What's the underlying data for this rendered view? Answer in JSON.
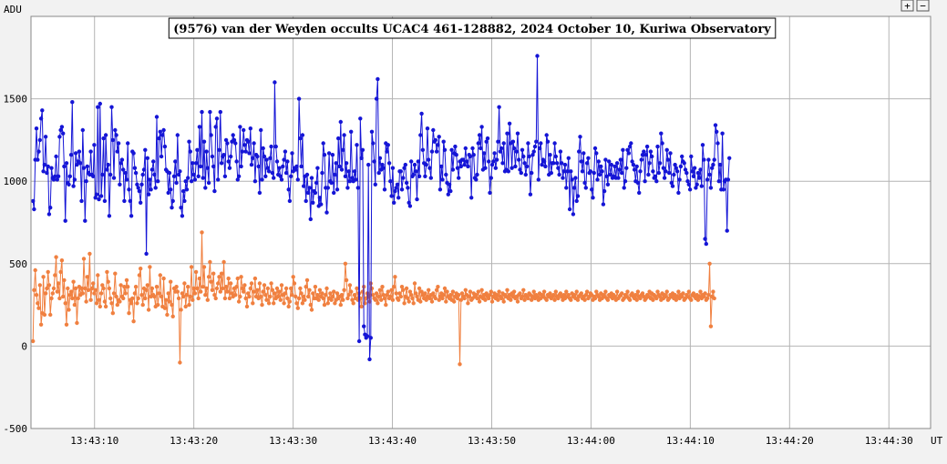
{
  "chart_data": {
    "type": "line",
    "title": "(9576) van der Weyden occults UCAC4 461-128882, 2024 October 10, Kuriwa Observatory",
    "ylabel": "ADU",
    "xlabel": "UT",
    "ylim": [
      -500,
      2000
    ],
    "y_ticks": [
      -500,
      0,
      500,
      1000,
      1500
    ],
    "x_ticks": [
      "13:43:10",
      "13:43:20",
      "13:43:30",
      "13:43:40",
      "13:43:50",
      "13:44:00",
      "13:44:10",
      "13:44:20",
      "13:44:30"
    ],
    "x_tick_seconds": [
      10,
      20,
      30,
      40,
      50,
      60,
      70,
      80,
      90
    ],
    "x_range_seconds": [
      3.6,
      94.2
    ],
    "grid": true,
    "sample_interval_seconds": 0.1165,
    "series": [
      {
        "color": "#1515d6",
        "start_seconds": 3.8,
        "values": [
          880,
          830,
          1130,
          1320,
          1130,
          1180,
          1250,
          1380,
          1430,
          1060,
          1100,
          1270,
          1050,
          1090,
          800,
          840,
          1080,
          1020,
          1010,
          1030,
          1150,
          1010,
          1030,
          1270,
          1310,
          1330,
          1290,
          1090,
          760,
          1110,
          990,
          980,
          1030,
          1160,
          1480,
          970,
          1010,
          1170,
          1100,
          1120,
          1180,
          1110,
          880,
          1310,
          1080,
          760,
          1000,
          1090,
          1050,
          1040,
          1180,
          1040,
          1030,
          1220,
          900,
          920,
          1450,
          890,
          1470,
          910,
          1040,
          1260,
          880,
          1280,
          1070,
          1100,
          790,
          1040,
          1450,
          1250,
          1020,
          1310,
          1280,
          1180,
          1230,
          980,
          1110,
          1130,
          1070,
          880,
          1050,
          1010,
          1230,
          950,
          880,
          790,
          1180,
          1170,
          1080,
          1050,
          980,
          960,
          940,
          870,
          980,
          1040,
          1070,
          1190,
          560,
          1140,
          920,
          1010,
          950,
          1070,
          1120,
          1040,
          960,
          1390,
          1000,
          1260,
          1300,
          1150,
          1280,
          1310,
          1210,
          1070,
          1060,
          930,
          1050,
          950,
          840,
          880,
          1030,
          1120,
          990,
          1280,
          1040,
          1060,
          840,
          790,
          940,
          880,
          1000,
          950,
          1020,
          1240,
          1180,
          1000,
          1110,
          1040,
          1010,
          1110,
          1190,
          1030,
          1330,
          1090,
          1420,
          1020,
          1240,
          960,
          1180,
          1080,
          990,
          1420,
          1280,
          1150,
          1090,
          940,
          1330,
          1380,
          1010,
          1190,
          1420,
          1110,
          1150,
          1160,
          1030,
          1250,
          1230,
          1120,
          1080,
          1150,
          1240,
          1280,
          1250,
          1230,
          1120,
          1010,
          1030,
          1330,
          1090,
          1180,
          1310,
          1220,
          1180,
          1250,
          1240,
          1170,
          1320,
          1100,
          1140,
          1230,
          1000,
          1160,
          1150,
          1090,
          930,
          1310,
          1010,
          1200,
          1150,
          1030,
          1130,
          1080,
          1060,
          1140,
          1210,
          1050,
          1020,
          1600,
          1210,
          1120,
          1040,
          1080,
          1030,
          1010,
          1090,
          1130,
          1180,
          1050,
          1120,
          950,
          880,
          1030,
          1170,
          1060,
          1080,
          1070,
          1090,
          1010,
          1500,
          1260,
          1090,
          1280,
          970,
          1030,
          880,
          1040,
          930,
          960,
          770,
          1020,
          870,
          940,
          930,
          990,
          1080,
          850,
          900,
          860,
          1050,
          1230,
          1160,
          960,
          810,
          960,
          1170,
          1000,
          990,
          1160,
          930,
          1040,
          1110,
          950,
          1260,
          1090,
          1360,
          1070,
          1190,
          1280,
          1030,
          1110,
          960,
          1060,
          1000,
          1300,
          1020,
          1000,
          1060,
          1010,
          1220,
          960,
          30,
          1380,
          1140,
          1190,
          120,
          70,
          50,
          60,
          1100,
          -80,
          50,
          1300,
          1230,
          1120,
          980,
          1500,
          1620,
          1050,
          1140,
          1070,
          1100,
          1080,
          950,
          1230,
          1180,
          1220,
          1110,
          1000,
          910,
          1080,
          870,
          940,
          960,
          980,
          900,
          1060,
          1060,
          950,
          1020,
          1080,
          1100,
          990,
          960,
          870,
          850,
          1120,
          1030,
          1040,
          1100,
          1060,
          890,
          1120,
          1030,
          1280,
          1410,
          1190,
          1110,
          1030,
          1100,
          1320,
          1130,
          1080,
          1020,
          1180,
          1310,
          1240,
          1250,
          1180,
          1220,
          1270,
          950,
          1090,
          1010,
          1240,
          1190,
          1040,
          990,
          920,
          980,
          940,
          1190,
          1070,
          1170,
          1210,
          1160,
          1080,
          1020,
          1120,
          1090,
          1130,
          1130,
          1100,
          1200,
          1120,
          1090,
          1160,
          1150,
          900,
          1200,
          1160,
          1020,
          1010,
          1040,
          1230,
          1280,
          1200,
          1330,
          1070,
          1170,
          1080,
          1240,
          1260,
          1120,
          930,
          1020,
          1100,
          1120,
          1170,
          1080,
          1130,
          1240,
          1450,
          1180,
          1200,
          1110,
          1230,
          1060,
          1070,
          1290,
          1060,
          1350,
          1230,
          1080,
          1240,
          1200,
          1090,
          1180,
          1290,
          1130,
          1070,
          1050,
          1190,
          1150,
          1110,
          1040,
          1090,
          1230,
          1150,
          920,
          1050,
          1160,
          1180,
          1210,
          1240,
          1760,
          1010,
          1200,
          1230,
          1100,
          1130,
          1120,
          1090,
          1280,
          1240,
          1040,
          1160,
          1050,
          1110,
          1110,
          1230,
          1150,
          1110,
          1080,
          1040,
          1180,
          1110,
          1020,
          1060,
          1100,
          960,
          1060,
          1140,
          830,
          1060,
          1010,
          800,
          960,
          1020,
          880,
          910,
          1180,
          1270,
          1120,
          1060,
          1170,
          990,
          960,
          1110,
          1140,
          1050,
          1060,
          950,
          900,
          1050,
          1200,
          1170,
          1010,
          1120,
          1040,
          1090,
          1060,
          860,
          940,
          1130,
          1030,
          980,
          1120,
          1040,
          1100,
          1020,
          1030,
          1090,
          1020,
          1110,
          1020,
          1070,
          1130,
          1050,
          1190,
          960,
          1000,
          1080,
          1190,
          1170,
          1210,
          1230,
          1120,
          1100,
          1070,
          1000,
          1090,
          990,
          930,
          1060,
          1130,
          1160,
          1180,
          1000,
          1160,
          1210,
          1040,
          1110,
          1180,
          1150,
          1060,
          1020,
          1030,
          1000,
          1210,
          1050,
          1110,
          1290,
          1230,
          1080,
          1020,
          1060,
          1190,
          1130,
          1050,
          1170,
          990,
          970,
          1040,
          1100,
          1080,
          1060,
          930,
          1010,
          1090,
          1150,
          1120,
          1110,
          1070,
          1050,
          1000,
          980,
          950,
          1150,
          1060,
          1030,
          1080,
          960,
          980,
          1050,
          1020,
          1070,
          970,
          1220,
          1130,
          650,
          620,
          1010,
          1130,
          1040,
          960,
          1080,
          1100,
          1130,
          1340,
          1300,
          1230,
          1000,
          1100,
          950,
          1290,
          950,
          1000,
          1010,
          700,
          1010,
          1140
        ]
      },
      {
        "color": "#f08040",
        "start_seconds": 3.8,
        "values": [
          30,
          340,
          460,
          310,
          260,
          230,
          370,
          130,
          200,
          420,
          190,
          320,
          350,
          450,
          370,
          190,
          290,
          320,
          350,
          430,
          540,
          330,
          380,
          290,
          450,
          520,
          300,
          400,
          260,
          130,
          350,
          220,
          310,
          330,
          290,
          390,
          250,
          350,
          140,
          290,
          360,
          310,
          350,
          320,
          530,
          350,
          270,
          420,
          340,
          560,
          280,
          350,
          380,
          320,
          340,
          260,
          430,
          280,
          240,
          320,
          370,
          350,
          270,
          240,
          450,
          390,
          350,
          290,
          260,
          200,
          320,
          440,
          300,
          250,
          280,
          270,
          370,
          300,
          290,
          360,
          320,
          400,
          360,
          200,
          280,
          260,
          290,
          150,
          320,
          360,
          260,
          290,
          430,
          470,
          310,
          250,
          350,
          290,
          340,
          370,
          220,
          480,
          300,
          350,
          310,
          300,
          240,
          360,
          250,
          320,
          430,
          300,
          240,
          410,
          230,
          280,
          190,
          320,
          270,
          390,
          250,
          180,
          350,
          330,
          360,
          330,
          290,
          -100,
          220,
          320,
          300,
          380,
          240,
          310,
          360,
          250,
          300,
          480,
          280,
          350,
          320,
          450,
          350,
          290,
          410,
          330,
          690,
          360,
          480,
          310,
          350,
          280,
          420,
          510,
          390,
          340,
          440,
          310,
          290,
          350,
          380,
          420,
          330,
          440,
          350,
          510,
          290,
          360,
          330,
          410,
          290,
          380,
          320,
          300,
          350,
          310,
          360,
          410,
          270,
          300,
          420,
          350,
          330,
          370,
          290,
          240,
          320,
          300,
          350,
          380,
          260,
          330,
          410,
          300,
          340,
          290,
          380,
          300,
          250,
          330,
          370,
          310,
          280,
          350,
          260,
          300,
          380,
          340,
          260,
          320,
          290,
          350,
          300,
          330,
          280,
          370,
          310,
          260,
          320,
          350,
          290,
          240,
          270,
          350,
          310,
          420,
          380,
          300,
          260,
          230,
          290,
          350,
          320,
          260,
          300,
          280,
          360,
          400,
          300,
          340,
          250,
          220,
          320,
          290,
          360,
          290,
          310,
          280,
          340,
          300,
          320,
          290,
          250,
          310,
          350,
          260,
          290,
          320,
          280,
          300,
          330,
          260,
          280,
          320,
          290,
          300,
          250,
          310,
          280,
          340,
          500,
          400,
          290,
          310,
          370,
          330,
          280,
          260,
          310,
          290,
          350,
          280,
          320,
          290,
          240,
          330,
          360,
          260,
          290,
          320,
          300,
          270,
          380,
          350,
          310,
          290,
          280,
          320,
          260,
          300,
          340,
          280,
          360,
          310,
          290,
          250,
          310,
          330,
          290,
          300,
          340,
          280,
          360,
          420,
          320,
          290,
          280,
          320,
          300,
          360,
          340,
          260,
          300,
          350,
          290,
          270,
          330,
          310,
          290,
          260,
          380,
          320,
          300,
          280,
          350,
          270,
          330,
          310,
          290,
          320,
          280,
          300,
          340,
          290,
          310,
          270,
          320,
          300,
          290,
          340,
          360,
          280,
          300,
          320,
          290,
          310,
          350,
          270,
          330,
          300,
          290,
          310,
          280,
          330,
          270,
          300,
          320,
          290,
          310,
          -110,
          280,
          320,
          300,
          290,
          340,
          310,
          260,
          300,
          330,
          280,
          290,
          320,
          300,
          310,
          290,
          330,
          270,
          300,
          340,
          290,
          310,
          280,
          320,
          300,
          290,
          310,
          330,
          270,
          300,
          320,
          290,
          310,
          280,
          330,
          300,
          290,
          320,
          270,
          310,
          300,
          340,
          290,
          310,
          280,
          320,
          300,
          330,
          290,
          300,
          270,
          310,
          320,
          290,
          300,
          340,
          280,
          310,
          300,
          290,
          320,
          310,
          280,
          300,
          330,
          290,
          310,
          300,
          280,
          320,
          290,
          310,
          300,
          330,
          290,
          280,
          310,
          300,
          320,
          290,
          300,
          310,
          280,
          330,
          300,
          290,
          310,
          320,
          300,
          280,
          310,
          290,
          330,
          300,
          310,
          290,
          280,
          320,
          300,
          310,
          290,
          330,
          280,
          300,
          310,
          320,
          290,
          300,
          280,
          310,
          330,
          290,
          300,
          320,
          310,
          280,
          300,
          290,
          330,
          310,
          300,
          280,
          320,
          290,
          310,
          300,
          330,
          290,
          280,
          310,
          300,
          320,
          290,
          310,
          300,
          280,
          330,
          290,
          300,
          310,
          320,
          280,
          290,
          310,
          300,
          330,
          290,
          280,
          310,
          320,
          300,
          290,
          310,
          280,
          330,
          300,
          290,
          310,
          320,
          300,
          280,
          290,
          310,
          300,
          330,
          290,
          320,
          280,
          310,
          300,
          290,
          330,
          310,
          300,
          280,
          320,
          290,
          310,
          300,
          330,
          280,
          290,
          310,
          300,
          320,
          290,
          310,
          280,
          300,
          330,
          290,
          310,
          300,
          320,
          280,
          290,
          310,
          300,
          330,
          290,
          280,
          310,
          320,
          300,
          290,
          310,
          280,
          300,
          330,
          290,
          310,
          300,
          320,
          280,
          290,
          310,
          500,
          120,
          300,
          330,
          290
        ]
      }
    ]
  },
  "controls": {
    "zoom_in_label": "+",
    "zoom_out_label": "−"
  }
}
